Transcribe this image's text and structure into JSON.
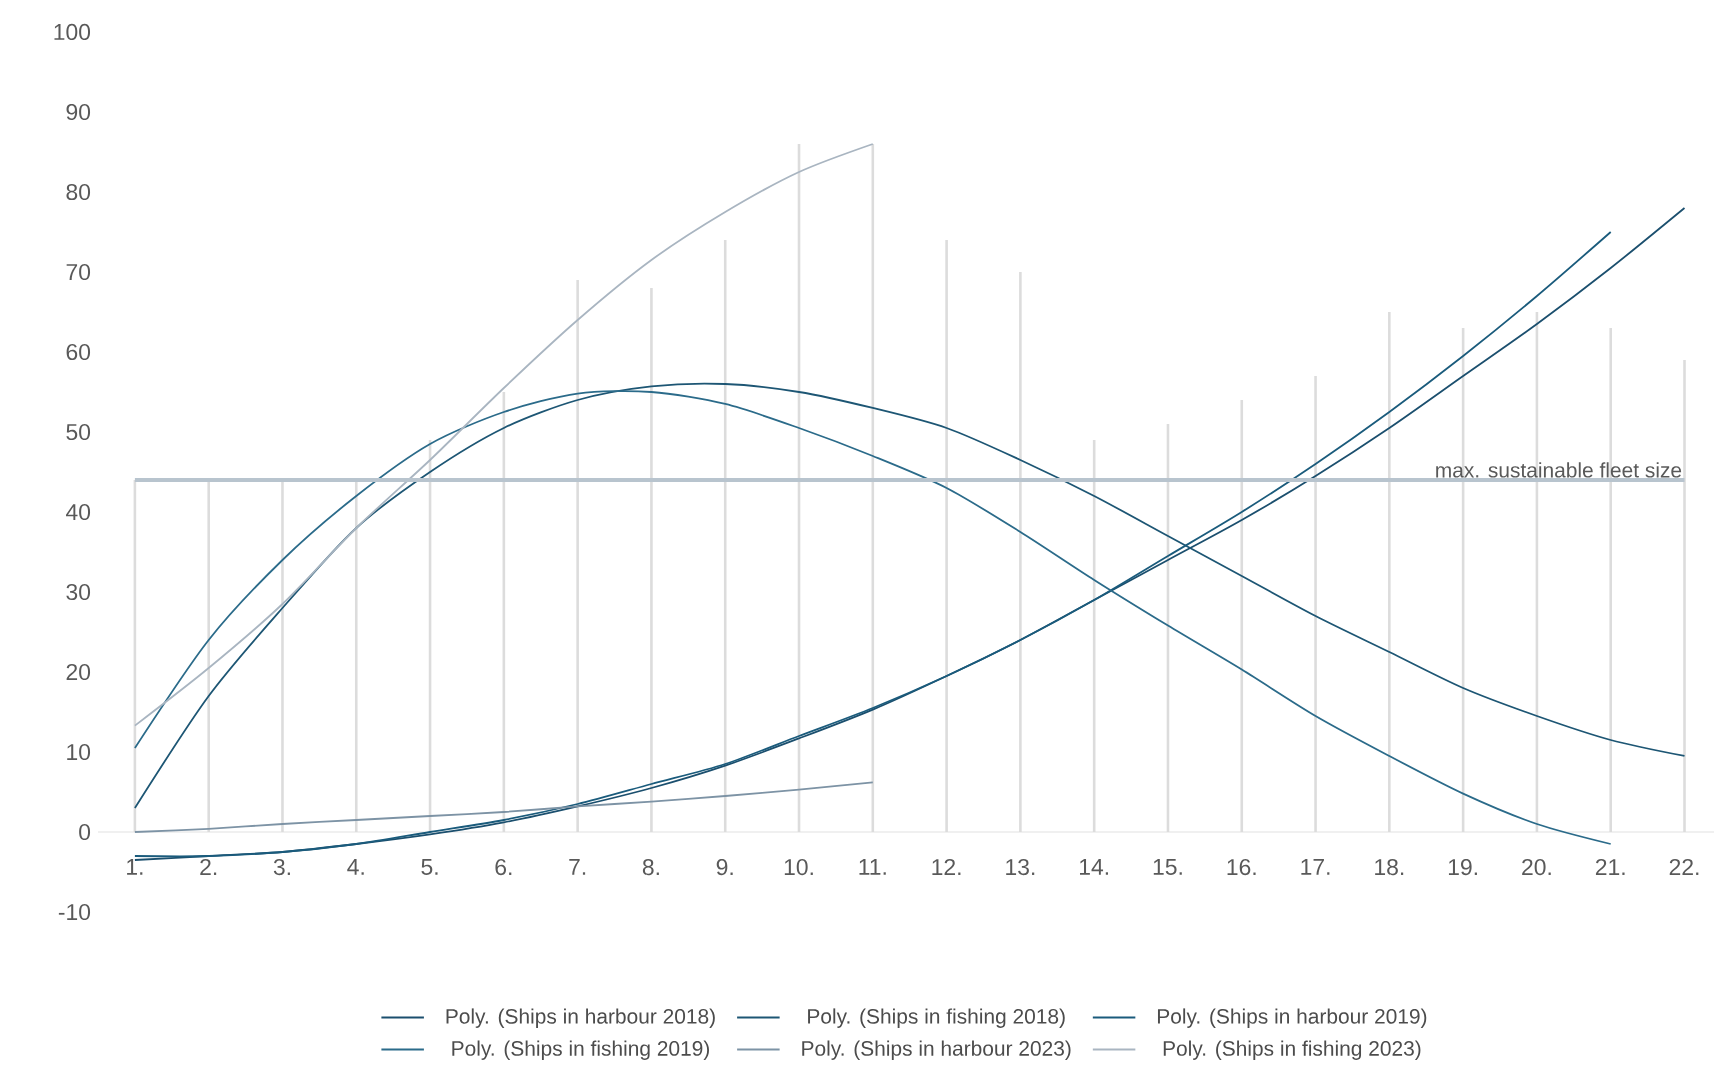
{
  "chart_data": {
    "type": "line",
    "categories": [
      "1.",
      "2.",
      "3.",
      "4.",
      "5.",
      "6.",
      "7.",
      "8.",
      "9.",
      "10.",
      "11.",
      "12.",
      "13.",
      "14.",
      "15.",
      "16.",
      "17.",
      "18.",
      "19.",
      "20.",
      "21.",
      "22."
    ],
    "series": [
      {
        "type": "bar",
        "color": "#dcdcdc",
        "values": [
          44,
          44,
          44,
          44,
          49,
          55,
          69,
          68,
          74,
          86,
          86,
          74,
          70,
          49,
          51,
          54,
          57,
          65,
          63,
          65,
          63,
          59
        ]
      },
      {
        "name": "Poly. (Ships in harbour 2018)",
        "color": "#1b4f6e",
        "values": [
          -3.5,
          -3,
          -2.5,
          -1.5,
          -0.3,
          1.2,
          3.2,
          5.5,
          8.3,
          11.7,
          15.3,
          19.5,
          24,
          29,
          34,
          39,
          44.5,
          50.5,
          57,
          63.5,
          70.5,
          78
        ]
      },
      {
        "name": "Poly. (Ships in fishing 2018)",
        "color": "#1d5674",
        "values": [
          3,
          17,
          28,
          38,
          45,
          50.5,
          54,
          55.7,
          56,
          55,
          53,
          50.5,
          46.5,
          42,
          37,
          32,
          27,
          22.5,
          18,
          14.5,
          11.5,
          9.5
        ]
      },
      {
        "name": "Poly. (Ships in harbour 2019)",
        "color": "#1a5b7c",
        "values": [
          -3,
          -3,
          -2.5,
          -1.5,
          0,
          1.5,
          3.5,
          6,
          8.5,
          12,
          15.5,
          19.5,
          24,
          29,
          34.5,
          40,
          46,
          52.5,
          59.5,
          67,
          75,
          null
        ]
      },
      {
        "name": "Poly. (Ships in fishing 2019)",
        "color": "#2b6b8a",
        "values": [
          10.5,
          24,
          34,
          42,
          48.5,
          52.5,
          54.8,
          55,
          53.5,
          50.5,
          47,
          43,
          37.5,
          31.5,
          25.8,
          20.3,
          14.5,
          9.5,
          4.8,
          1,
          -1.5,
          null
        ]
      },
      {
        "name": "Poly. (Ships in harbour 2023)",
        "color": "#7d93a5",
        "values": [
          0,
          0.4,
          1,
          1.5,
          2,
          2.5,
          3.2,
          3.8,
          4.5,
          5.3,
          6.2,
          null,
          null,
          null,
          null,
          null,
          null,
          null,
          null,
          null,
          null,
          null
        ]
      },
      {
        "name": "Poly. (Ships in fishing 2023)",
        "color": "#a9b5c1",
        "values": [
          13.3,
          20.5,
          28.5,
          38,
          46.5,
          55.5,
          64,
          71.5,
          77.5,
          82.5,
          86,
          null,
          null,
          null,
          null,
          null,
          null,
          null,
          null,
          null,
          null,
          null
        ]
      }
    ],
    "ylim": [
      -10,
      100
    ],
    "yticks": [
      -10,
      0,
      10,
      20,
      30,
      40,
      50,
      60,
      70,
      80,
      90,
      100
    ],
    "ref_lines": [
      {
        "axis": "y",
        "value": 44,
        "label": "max. sustainable fleet size",
        "color": "#b8c4ce"
      }
    ],
    "legend": "bottom"
  }
}
